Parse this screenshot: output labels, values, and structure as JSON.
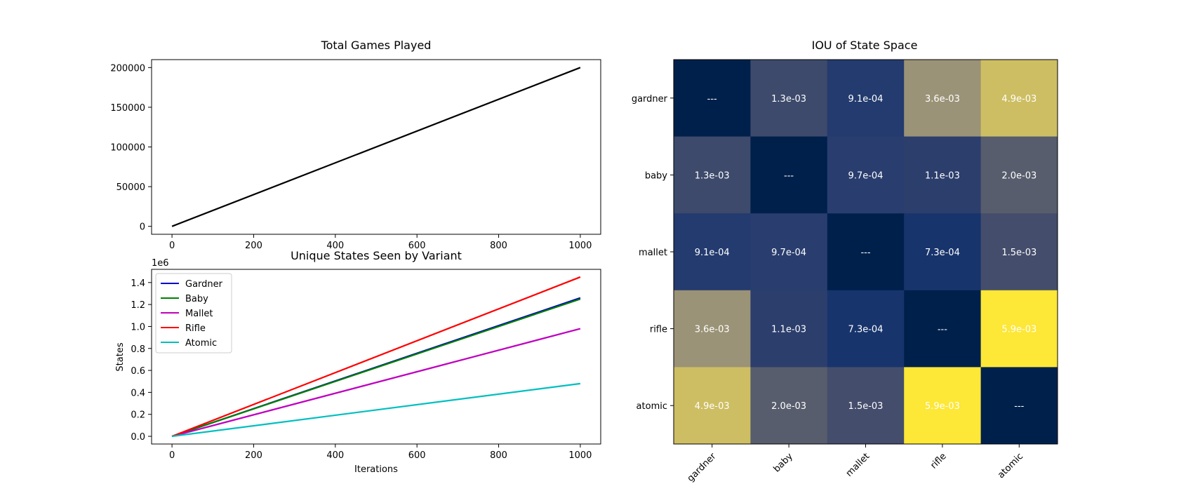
{
  "chart_data": [
    {
      "type": "line",
      "title": "Total Games Played",
      "xlabel": "",
      "ylabel": "",
      "xlim": [
        -50,
        1050
      ],
      "ylim": [
        -10000,
        210000
      ],
      "xticks": [
        0,
        200,
        400,
        600,
        800,
        1000
      ],
      "yticks": [
        0,
        50000,
        100000,
        150000,
        200000
      ],
      "grid": false,
      "series": [
        {
          "color": "#000000",
          "x": [
            0,
            1000
          ],
          "y": [
            0,
            200000
          ]
        }
      ]
    },
    {
      "type": "line",
      "title": "Unique States Seen by Variant",
      "xlabel": "Iterations",
      "ylabel": "States",
      "y_scale_label": "1e6",
      "xlim": [
        -50,
        1050
      ],
      "ylim": [
        -0.07,
        1.52
      ],
      "xticks": [
        0,
        200,
        400,
        600,
        800,
        1000
      ],
      "yticks": [
        0.0,
        0.2,
        0.4,
        0.6,
        0.8,
        1.0,
        1.2,
        1.4
      ],
      "ytick_labels": [
        "0.0",
        "0.2",
        "0.4",
        "0.6",
        "0.8",
        "1.0",
        "1.2",
        "1.4"
      ],
      "grid": false,
      "legend": "top-left",
      "series": [
        {
          "name": "Gardner",
          "color": "#0000cc",
          "x": [
            0,
            1000
          ],
          "y": [
            0,
            1.26
          ]
        },
        {
          "name": "Baby",
          "color": "#008000",
          "x": [
            0,
            1000
          ],
          "y": [
            0,
            1.25
          ]
        },
        {
          "name": "Mallet",
          "color": "#bf00bf",
          "x": [
            0,
            1000
          ],
          "y": [
            0,
            0.98
          ]
        },
        {
          "name": "Rifle",
          "color": "#ff0000",
          "x": [
            0,
            1000
          ],
          "y": [
            0,
            1.45
          ]
        },
        {
          "name": "Atomic",
          "color": "#00bfbf",
          "x": [
            0,
            1000
          ],
          "y": [
            0,
            0.48
          ]
        }
      ]
    },
    {
      "type": "heatmap",
      "title": "IOU of State Space",
      "rows": [
        "gardner",
        "baby",
        "mallet",
        "rifle",
        "atomic"
      ],
      "cols": [
        "gardner",
        "baby",
        "mallet",
        "rifle",
        "atomic"
      ],
      "colormap": "cividis",
      "values": [
        [
          0,
          0.0013,
          0.00091,
          0.0036,
          0.0049
        ],
        [
          0.0013,
          0,
          0.00097,
          0.0011,
          0.002
        ],
        [
          0.00091,
          0.00097,
          0,
          0.00073,
          0.0015
        ],
        [
          0.0036,
          0.0011,
          0.00073,
          0,
          0.0059
        ],
        [
          0.0049,
          0.002,
          0.0015,
          0.0059,
          0
        ]
      ],
      "labels": [
        [
          "---",
          "1.3e-03",
          "9.1e-04",
          "3.6e-03",
          "4.9e-03"
        ],
        [
          "1.3e-03",
          "---",
          "9.7e-04",
          "1.1e-03",
          "2.0e-03"
        ],
        [
          "9.1e-04",
          "9.7e-04",
          "---",
          "7.3e-04",
          "1.5e-03"
        ],
        [
          "3.6e-03",
          "1.1e-03",
          "7.3e-04",
          "---",
          "5.9e-03"
        ],
        [
          "4.9e-03",
          "2.0e-03",
          "1.5e-03",
          "5.9e-03",
          "---"
        ]
      ],
      "cell_colors": [
        [
          "#00204c",
          "#3d4a6b",
          "#233b6e",
          "#9b9377",
          "#cdbe63"
        ],
        [
          "#3d4a6b",
          "#00204c",
          "#293d6e",
          "#2c3e6c",
          "#575d6d"
        ],
        [
          "#233b6e",
          "#293d6e",
          "#00204c",
          "#18346c",
          "#444d6b"
        ],
        [
          "#9b9377",
          "#2c3e6c",
          "#18346c",
          "#00204c",
          "#fde737"
        ],
        [
          "#cdbe63",
          "#575d6d",
          "#444d6b",
          "#fde737",
          "#00204c"
        ]
      ]
    }
  ]
}
